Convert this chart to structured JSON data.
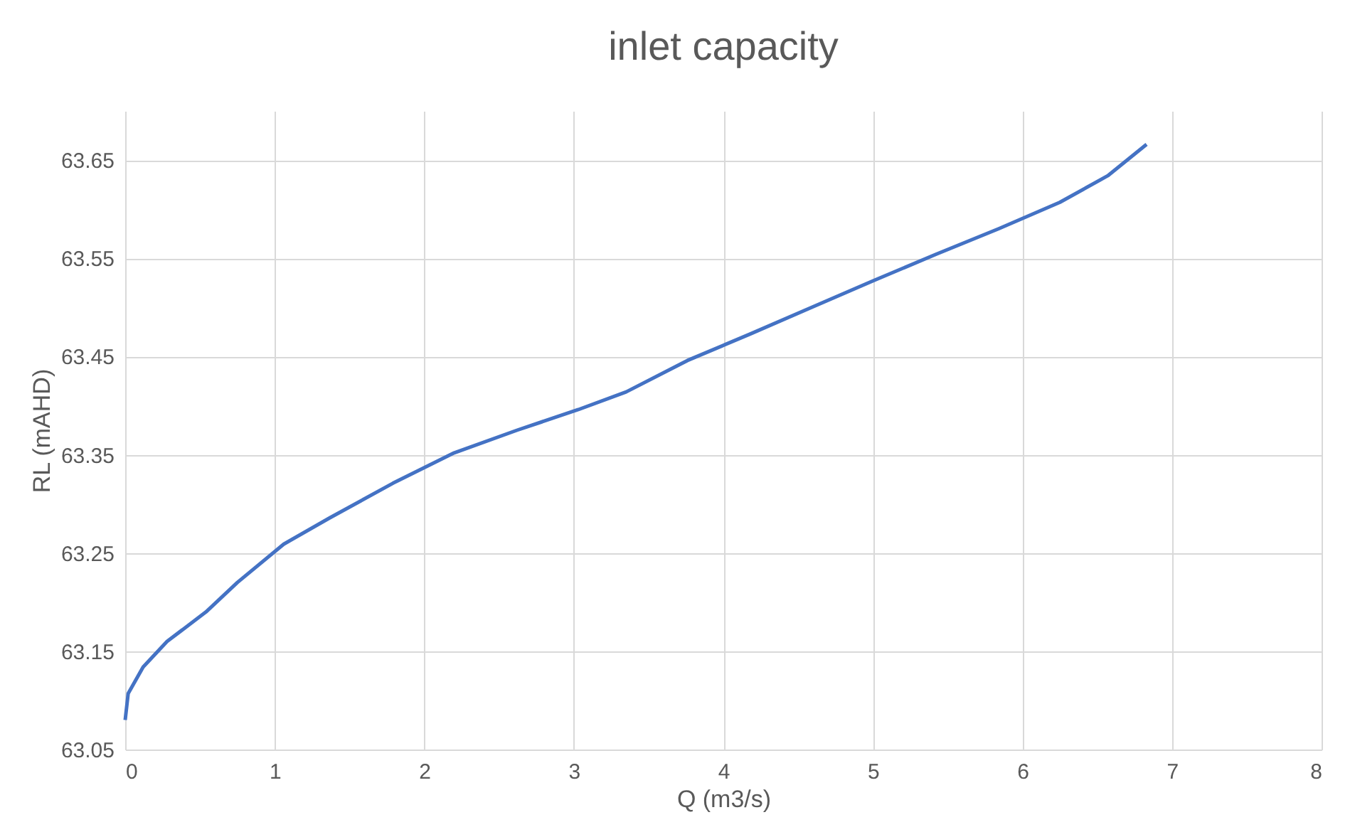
{
  "chart_data": {
    "type": "line",
    "title": "inlet capacity",
    "xlabel": "Q (m3/s)",
    "ylabel": "RL (mAHD)",
    "x": [
      0,
      0.02,
      0.12,
      0.28,
      0.54,
      0.75,
      1.06,
      1.37,
      1.79,
      2.2,
      2.62,
      3.03,
      3.35,
      3.76,
      4.18,
      4.59,
      5.0,
      5.42,
      5.84,
      6.25,
      6.57,
      6.83
    ],
    "series": [
      {
        "color": "#4472c4",
        "values": [
          63.08,
          63.107,
          63.134,
          63.16,
          63.19,
          63.22,
          63.259,
          63.286,
          63.321,
          63.352,
          63.375,
          63.396,
          63.414,
          63.446,
          63.473,
          63.5,
          63.527,
          63.554,
          63.58,
          63.607,
          63.634,
          63.666
        ]
      }
    ],
    "xlim": [
      0,
      8
    ],
    "xticks": [
      0,
      1,
      2,
      3,
      4,
      5,
      6,
      7,
      8
    ],
    "ylim": [
      63.05,
      63.7
    ],
    "yticks": [
      63.05,
      63.15,
      63.25,
      63.35,
      63.45,
      63.55,
      63.65
    ],
    "grid": true,
    "marker": "none",
    "line_style": "solid",
    "legend": false
  }
}
